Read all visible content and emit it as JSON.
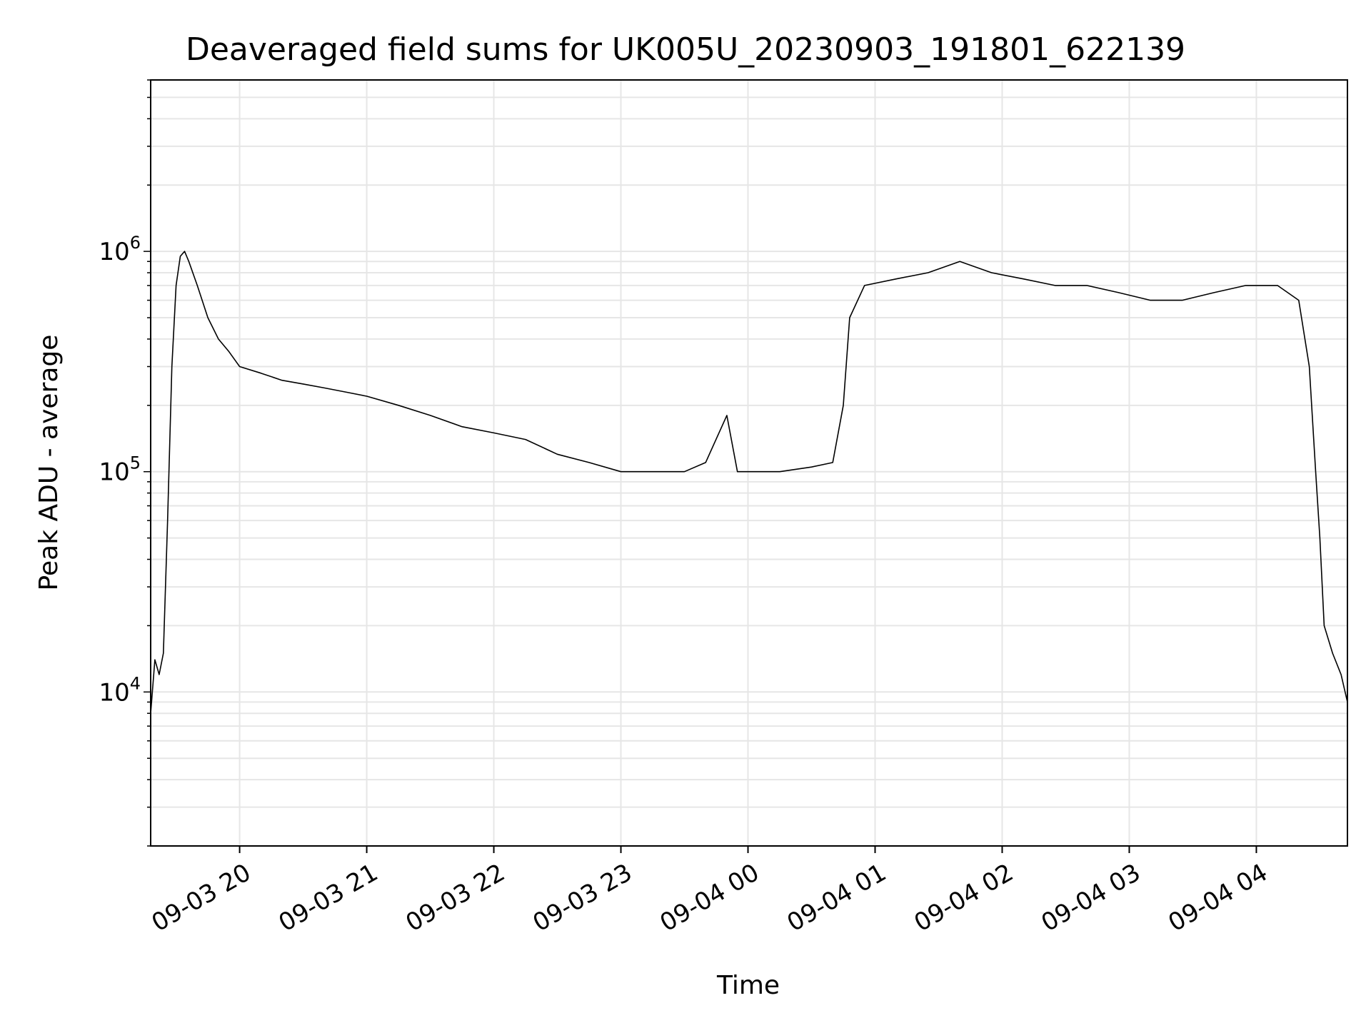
{
  "chart_data": {
    "type": "line",
    "title": "Deaveraged field sums for UK005U_20230903_191801_622139",
    "xlabel": "Time",
    "ylabel": "Peak ADU - average",
    "yscale": "log",
    "ylim": [
      2000,
      6000000
    ],
    "xlim": [
      "2023-09-03 19:18",
      "2023-09-04 04:43"
    ],
    "grid": true,
    "line_color": "#000000",
    "grid_color": "#e6e6e6",
    "x_ticks": [
      {
        "value": "2023-09-03 20:00",
        "label": "09-03 20"
      },
      {
        "value": "2023-09-03 21:00",
        "label": "09-03 21"
      },
      {
        "value": "2023-09-03 22:00",
        "label": "09-03 22"
      },
      {
        "value": "2023-09-03 23:00",
        "label": "09-03 23"
      },
      {
        "value": "2023-09-04 00:00",
        "label": "09-04 00"
      },
      {
        "value": "2023-09-04 01:00",
        "label": "09-04 01"
      },
      {
        "value": "2023-09-04 02:00",
        "label": "09-04 02"
      },
      {
        "value": "2023-09-04 03:00",
        "label": "09-04 03"
      },
      {
        "value": "2023-09-04 04:00",
        "label": "09-04 04"
      }
    ],
    "y_ticks": [
      {
        "value": 10000,
        "base": "10",
        "exp": "4"
      },
      {
        "value": 100000,
        "base": "10",
        "exp": "5"
      },
      {
        "value": 1000000,
        "base": "10",
        "exp": "6"
      }
    ],
    "series": [
      {
        "values": [
          [
            "2023-09-03 19:18",
            8000
          ],
          [
            "2023-09-03 19:20",
            14000
          ],
          [
            "2023-09-03 19:22",
            12000
          ],
          [
            "2023-09-03 19:24",
            15000
          ],
          [
            "2023-09-03 19:26",
            60000
          ],
          [
            "2023-09-03 19:28",
            300000
          ],
          [
            "2023-09-03 19:30",
            700000
          ],
          [
            "2023-09-03 19:32",
            950000
          ],
          [
            "2023-09-03 19:34",
            1000000
          ],
          [
            "2023-09-03 19:36",
            900000
          ],
          [
            "2023-09-03 19:40",
            700000
          ],
          [
            "2023-09-03 19:45",
            500000
          ],
          [
            "2023-09-03 19:50",
            400000
          ],
          [
            "2023-09-03 19:55",
            350000
          ],
          [
            "2023-09-03 20:00",
            300000
          ],
          [
            "2023-09-03 20:10",
            280000
          ],
          [
            "2023-09-03 20:20",
            260000
          ],
          [
            "2023-09-03 20:30",
            250000
          ],
          [
            "2023-09-03 20:40",
            240000
          ],
          [
            "2023-09-03 20:50",
            230000
          ],
          [
            "2023-09-03 21:00",
            220000
          ],
          [
            "2023-09-03 21:15",
            200000
          ],
          [
            "2023-09-03 21:30",
            180000
          ],
          [
            "2023-09-03 21:45",
            160000
          ],
          [
            "2023-09-03 22:00",
            150000
          ],
          [
            "2023-09-03 22:15",
            140000
          ],
          [
            "2023-09-03 22:30",
            120000
          ],
          [
            "2023-09-03 22:45",
            110000
          ],
          [
            "2023-09-03 23:00",
            100000
          ],
          [
            "2023-09-03 23:15",
            100000
          ],
          [
            "2023-09-03 23:30",
            100000
          ],
          [
            "2023-09-03 23:40",
            110000
          ],
          [
            "2023-09-03 23:50",
            180000
          ],
          [
            "2023-09-03 23:55",
            100000
          ],
          [
            "2023-09-04 00:00",
            100000
          ],
          [
            "2023-09-04 00:15",
            100000
          ],
          [
            "2023-09-04 00:30",
            105000
          ],
          [
            "2023-09-04 00:40",
            110000
          ],
          [
            "2023-09-04 00:45",
            200000
          ],
          [
            "2023-09-04 00:48",
            500000
          ],
          [
            "2023-09-04 00:55",
            700000
          ],
          [
            "2023-09-04 01:10",
            750000
          ],
          [
            "2023-09-04 01:25",
            800000
          ],
          [
            "2023-09-04 01:40",
            900000
          ],
          [
            "2023-09-04 01:55",
            800000
          ],
          [
            "2023-09-04 02:10",
            750000
          ],
          [
            "2023-09-04 02:25",
            700000
          ],
          [
            "2023-09-04 02:40",
            700000
          ],
          [
            "2023-09-04 02:55",
            650000
          ],
          [
            "2023-09-04 03:10",
            600000
          ],
          [
            "2023-09-04 03:25",
            600000
          ],
          [
            "2023-09-04 03:40",
            650000
          ],
          [
            "2023-09-04 03:55",
            700000
          ],
          [
            "2023-09-04 04:10",
            700000
          ],
          [
            "2023-09-04 04:20",
            600000
          ],
          [
            "2023-09-04 04:25",
            300000
          ],
          [
            "2023-09-04 04:28",
            100000
          ],
          [
            "2023-09-04 04:30",
            50000
          ],
          [
            "2023-09-04 04:32",
            20000
          ],
          [
            "2023-09-04 04:36",
            15000
          ],
          [
            "2023-09-04 04:40",
            12000
          ],
          [
            "2023-09-04 04:43",
            9000
          ]
        ]
      }
    ]
  }
}
